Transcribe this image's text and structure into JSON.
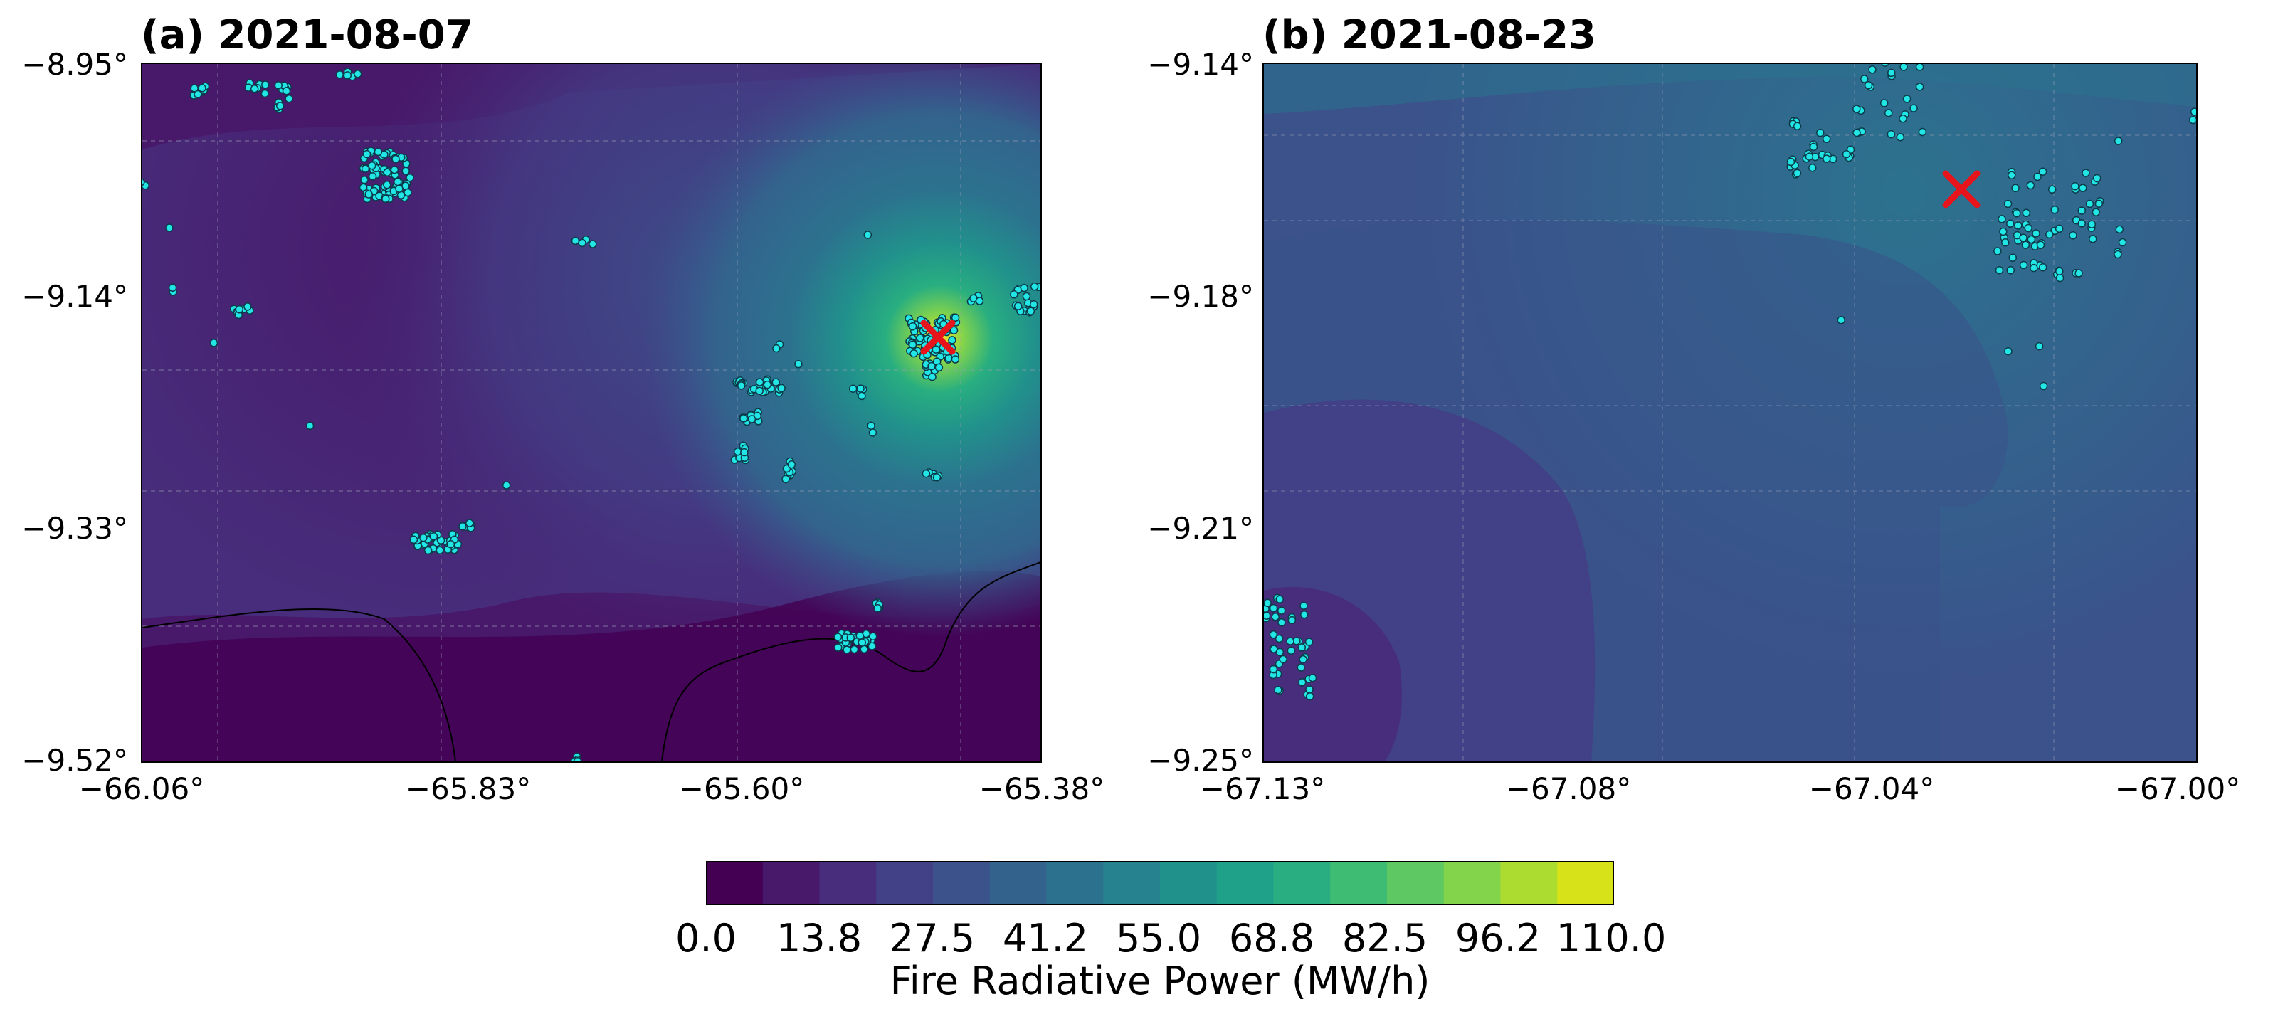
{
  "panels": [
    {
      "title": "(a) 2021-08-07",
      "x_ticks": [
        "−66.06°",
        "−65.83°",
        "−65.60°",
        "−65.38°"
      ],
      "y_ticks": [
        "−8.95°",
        "−9.14°",
        "−9.33°",
        "−9.52°"
      ],
      "marker": "✕",
      "detections_color": "#22e5e5",
      "marker_color": "#e8141c"
    },
    {
      "title": "(b) 2021-08-23",
      "x_ticks": [
        "−67.13°",
        "−67.08°",
        "−67.04°",
        "−67.00°"
      ],
      "y_ticks": [
        "−9.14°",
        "−9.18°",
        "−9.21°",
        "−9.25°"
      ],
      "marker": "✕",
      "detections_color": "#22e5e5",
      "marker_color": "#e8141c"
    }
  ],
  "colorbar": {
    "label": "Fire Radiative Power (MW/h)",
    "ticks": [
      "0.0",
      "13.8",
      "27.5",
      "41.2",
      "55.0",
      "68.8",
      "82.5",
      "96.2",
      "110.0"
    ],
    "range": [
      0,
      110
    ],
    "colormap": [
      "#440154",
      "#48186a",
      "#472d7b",
      "#424086",
      "#3b528b",
      "#33638d",
      "#2c728e",
      "#26828e",
      "#21918c",
      "#1fa088",
      "#28ae80",
      "#3fbc73",
      "#5ec962",
      "#84d44b",
      "#addc30",
      "#d8e219",
      "#fde725"
    ]
  }
}
